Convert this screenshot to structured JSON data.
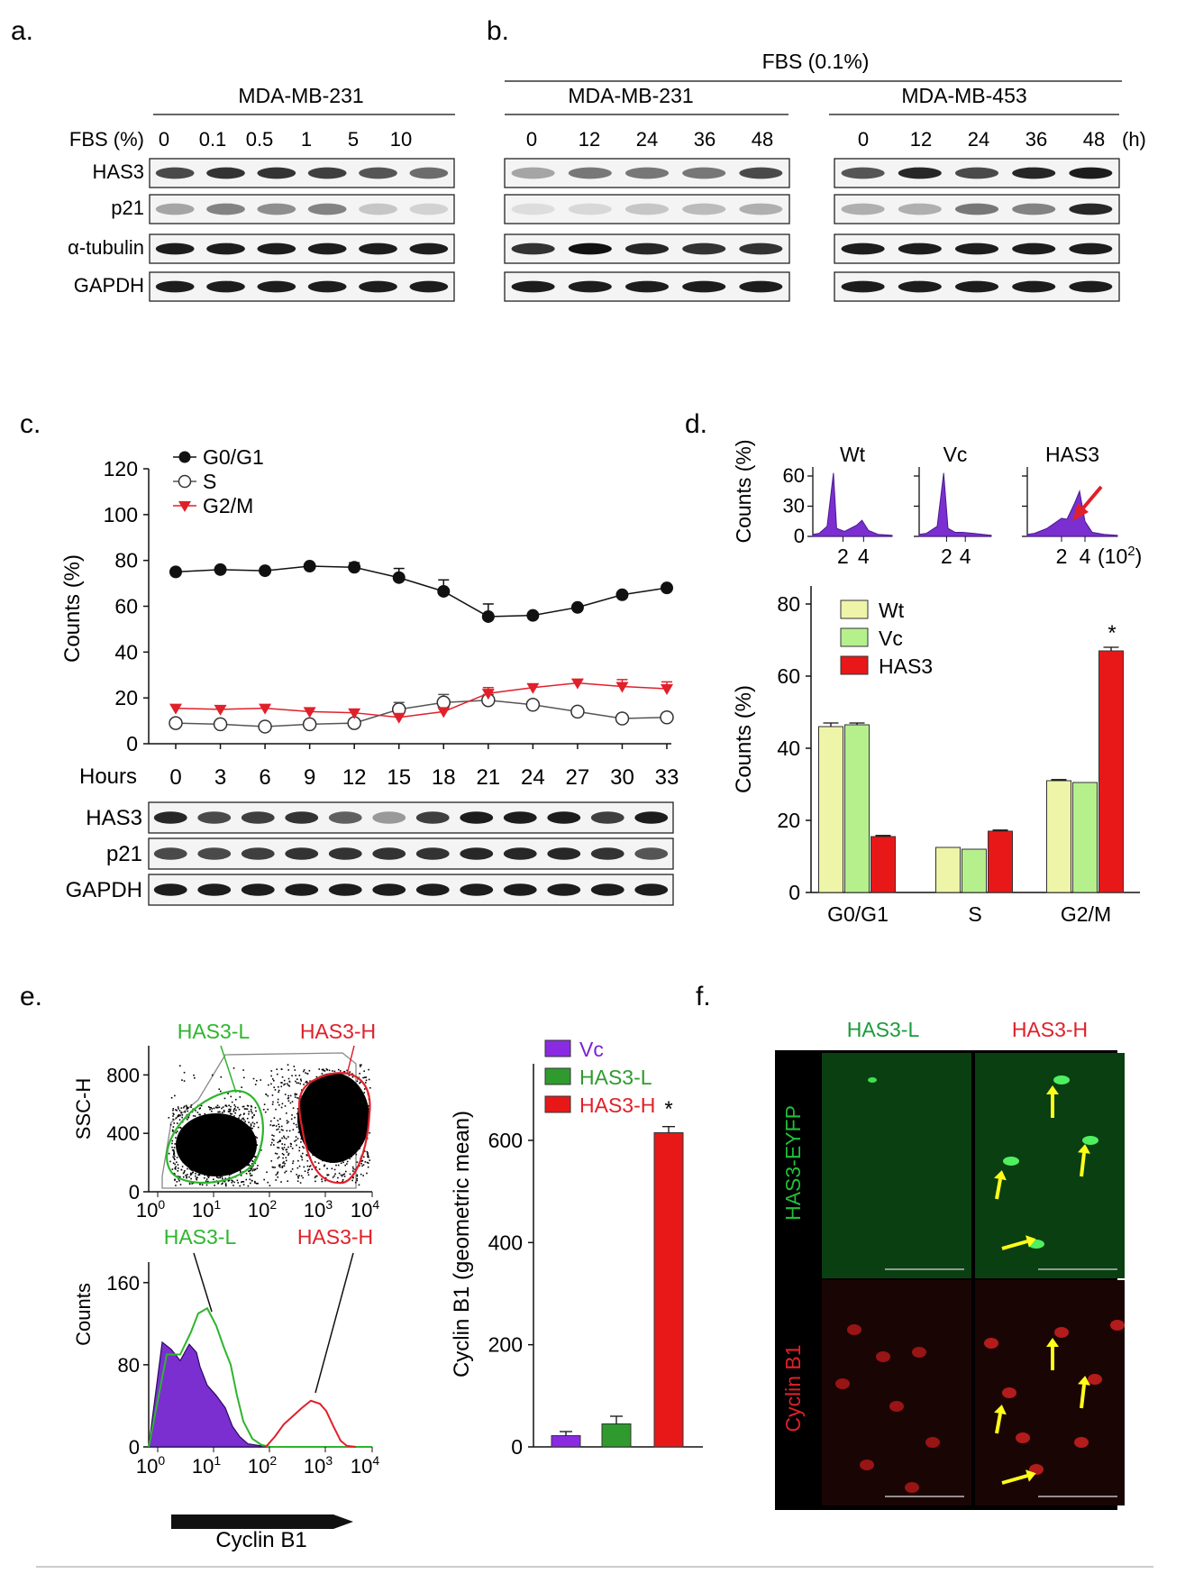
{
  "panel_labels": {
    "a": "a.",
    "b": "b.",
    "c": "c.",
    "d": "d.",
    "e": "e.",
    "f": "f."
  },
  "colors": {
    "black": "#111111",
    "red": "#e0202a",
    "green": "#2db52d",
    "purple": "#7b2fd0",
    "wt": "#eef5a8",
    "vc_light": "#b6f08c",
    "has3_red": "#e81818",
    "vc_purple": "#8a2be2",
    "has3l_green": "#2f9b2f",
    "yellow": "#ffff1a"
  },
  "panel_a": {
    "cell_line": "MDA-MB-231",
    "row_header": "FBS (%)",
    "conditions": [
      "0",
      "0.1",
      "0.5",
      "1",
      "5",
      "10"
    ],
    "blots": [
      "HAS3",
      "p21",
      "α-tubulin",
      "GAPDH"
    ]
  },
  "panel_b": {
    "header": "FBS (0.1%)",
    "lines": [
      "MDA-MB-231",
      "MDA-MB-453"
    ],
    "times": [
      "0",
      "12",
      "24",
      "36",
      "48"
    ],
    "unit": "(h)"
  },
  "panel_c": {
    "xlabel": "Hours",
    "ylabel": "Counts (%)",
    "yticks": [
      "0",
      "20",
      "40",
      "60",
      "80",
      "100",
      "120"
    ],
    "blots": [
      "HAS3",
      "p21",
      "GAPDH"
    ],
    "chart_data": {
      "type": "line",
      "x": [
        0,
        3,
        6,
        9,
        12,
        15,
        18,
        21,
        24,
        27,
        30,
        33
      ],
      "ylim": [
        0,
        120
      ],
      "series": [
        {
          "name": "G0/G1",
          "values": [
            75,
            76,
            75.5,
            77.5,
            77,
            72.5,
            66.5,
            55.5,
            56,
            59.5,
            65,
            68
          ],
          "errors": [
            0,
            0,
            0,
            0,
            2,
            4,
            5,
            5.5,
            0,
            0,
            0,
            0
          ]
        },
        {
          "name": "S",
          "values": [
            9,
            8.5,
            7.5,
            8.5,
            9,
            15,
            18,
            19,
            17,
            14,
            11,
            11.5
          ],
          "errors": [
            0,
            0,
            0,
            0,
            0,
            3,
            3.5,
            2.5,
            0,
            0,
            0,
            0
          ]
        },
        {
          "name": "G2/M",
          "values": [
            15.5,
            15,
            15.5,
            14,
            13.5,
            11.5,
            14,
            22,
            24.5,
            26.5,
            25,
            24
          ],
          "errors": [
            0,
            0,
            0,
            0,
            0,
            0,
            0,
            2.5,
            0,
            0,
            3,
            3
          ]
        }
      ]
    }
  },
  "panel_d": {
    "hist_ylabel": "Counts (%)",
    "hist_titles": [
      "Wt",
      "Vc",
      "HAS3"
    ],
    "hist_yticks": [
      "0",
      "30",
      "60"
    ],
    "hist_xticks": [
      "2",
      "4"
    ],
    "hist_xunit": "(10",
    "hist_xunit_exp": "2",
    "hist_xunit_close": ")",
    "chart_data": {
      "type": "bar",
      "categories": [
        "G0/G1",
        "S",
        "G2/M"
      ],
      "ylabel": "Counts (%)",
      "ylim": [
        0,
        85
      ],
      "yticks": [
        "0",
        "20",
        "40",
        "60",
        "80"
      ],
      "series": [
        {
          "name": "Wt",
          "values": [
            46,
            12.5,
            31
          ],
          "errors": [
            1,
            0,
            0.3
          ]
        },
        {
          "name": "Vc",
          "values": [
            46.5,
            12,
            30.5
          ],
          "errors": [
            0.5,
            0,
            0
          ]
        },
        {
          "name": "HAS3",
          "values": [
            15.5,
            17,
            67
          ],
          "errors": [
            0.3,
            0.3,
            1
          ]
        }
      ],
      "annotation": "*"
    }
  },
  "panel_e": {
    "scatter_ylabel": "SSC-H",
    "scatter_yticks": [
      "0",
      "400",
      "800"
    ],
    "gate_labels": [
      "HAS3-L",
      "HAS3-H"
    ],
    "hist_ylabel": "Counts",
    "hist_yticks": [
      "0",
      "80",
      "160"
    ],
    "xticks": [
      "10",
      "10",
      "10",
      "10",
      "10"
    ],
    "xtick_exps": [
      "0",
      "1",
      "2",
      "3",
      "4"
    ],
    "xlabel": "Cyclin B1",
    "chart_data": {
      "type": "bar",
      "categories": [
        "Vc",
        "HAS3-L",
        "HAS3-H"
      ],
      "values": [
        22,
        45,
        615
      ],
      "errors": [
        8,
        15,
        12
      ],
      "ylabel": "Cyclin B1 (geometric mean)",
      "ylim": [
        0,
        750
      ],
      "yticks": [
        "0",
        "200",
        "400",
        "600"
      ],
      "annotation": "*"
    }
  },
  "panel_f": {
    "columns": [
      "HAS3-L",
      "HAS3-H"
    ],
    "rows": [
      "HAS3-EYFP",
      "Cyclin B1"
    ]
  }
}
